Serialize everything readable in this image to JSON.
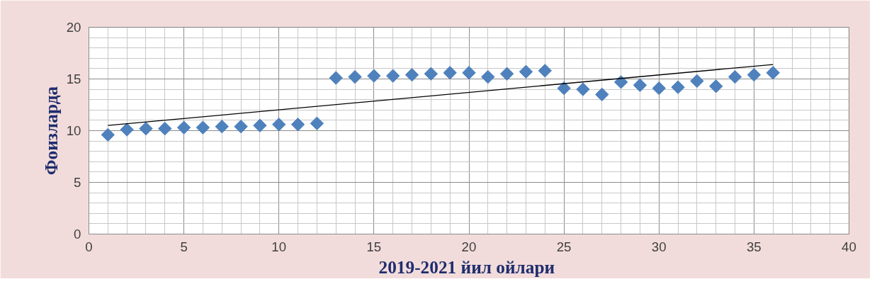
{
  "chart_data": {
    "type": "scatter",
    "xlabel": "2019-2021  йил ойлари",
    "ylabel": "Фоизларда",
    "x": [
      1,
      2,
      3,
      4,
      5,
      6,
      7,
      8,
      9,
      10,
      11,
      12,
      13,
      14,
      15,
      16,
      17,
      18,
      19,
      20,
      21,
      22,
      23,
      24,
      25,
      26,
      27,
      28,
      29,
      30,
      31,
      32,
      33,
      34,
      35,
      36
    ],
    "series": [
      {
        "color": "#4f81bd",
        "marker": "diamond",
        "values": [
          9.6,
          10.1,
          10.2,
          10.2,
          10.3,
          10.3,
          10.4,
          10.4,
          10.5,
          10.6,
          10.6,
          10.7,
          15.1,
          15.2,
          15.3,
          15.3,
          15.4,
          15.5,
          15.6,
          15.6,
          15.2,
          15.5,
          15.7,
          15.8,
          14.1,
          14.0,
          13.5,
          14.7,
          14.4,
          14.1,
          14.2,
          14.8,
          14.3,
          15.2,
          15.4,
          15.6
        ]
      },
      {
        "type": "line",
        "color": "#000000",
        "x": [
          1,
          36
        ],
        "values": [
          10.5,
          16.4
        ]
      }
    ],
    "xlim": [
      0,
      40
    ],
    "xticks": [
      0,
      5,
      10,
      15,
      20,
      25,
      30,
      35,
      40
    ],
    "ylim": [
      0,
      20
    ],
    "yticks": [
      0,
      5,
      10,
      15,
      20
    ],
    "grid": true
  }
}
